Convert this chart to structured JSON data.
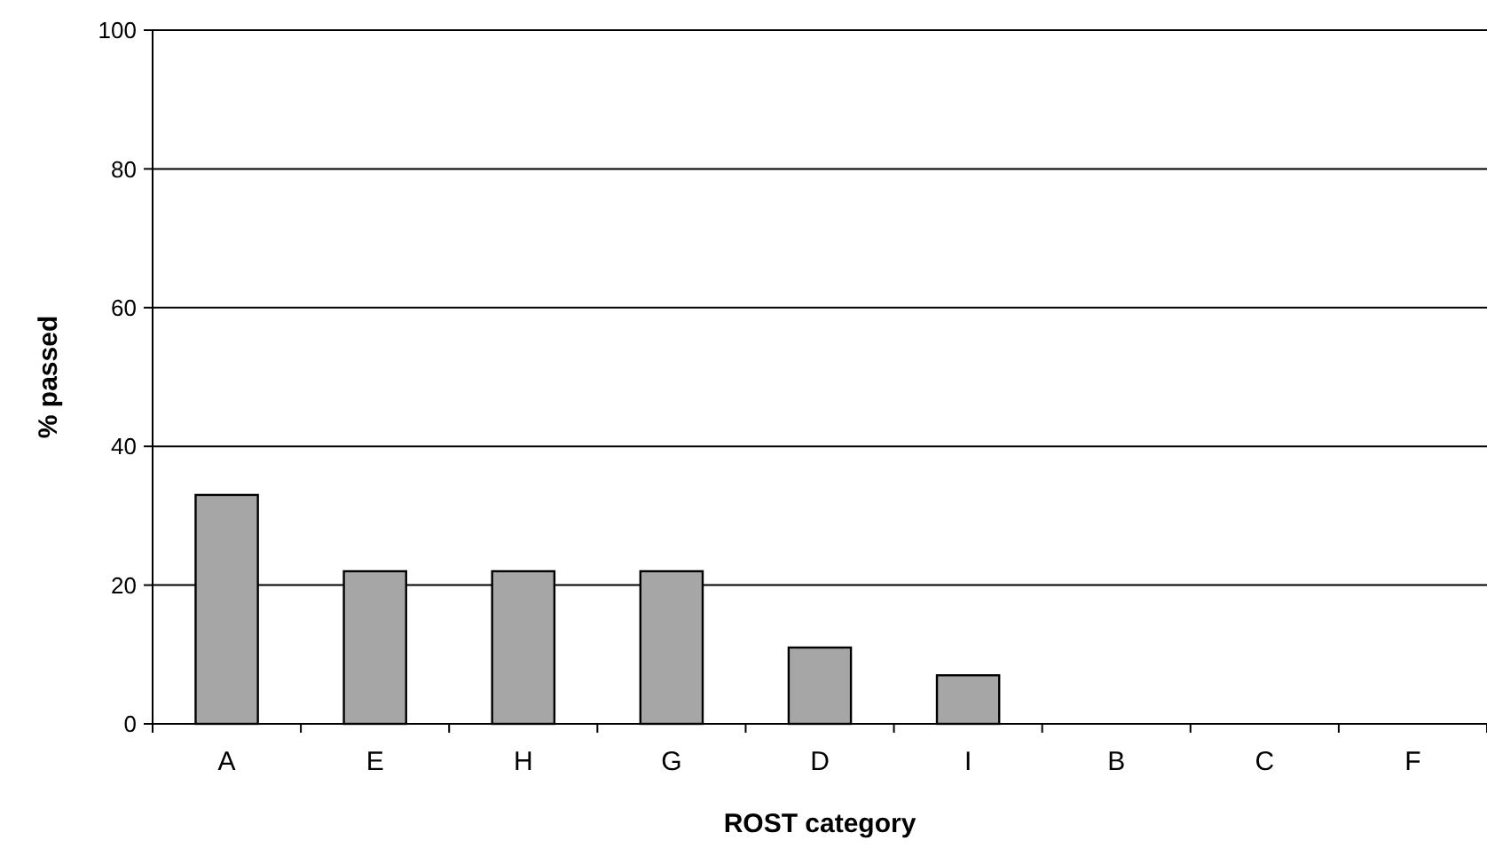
{
  "chart_data": {
    "type": "bar",
    "xlabel": "ROST category",
    "ylabel": "% passed",
    "categories": [
      "A",
      "E",
      "H",
      "G",
      "D",
      "I",
      "B",
      "C",
      "F"
    ],
    "values": [
      33,
      22,
      22,
      22,
      11,
      7,
      0,
      0,
      0
    ],
    "color": "#a6a6a6",
    "ylim": [
      0,
      100
    ],
    "yticks": [
      0,
      20,
      40,
      60,
      80,
      100
    ],
    "grid": "y"
  }
}
